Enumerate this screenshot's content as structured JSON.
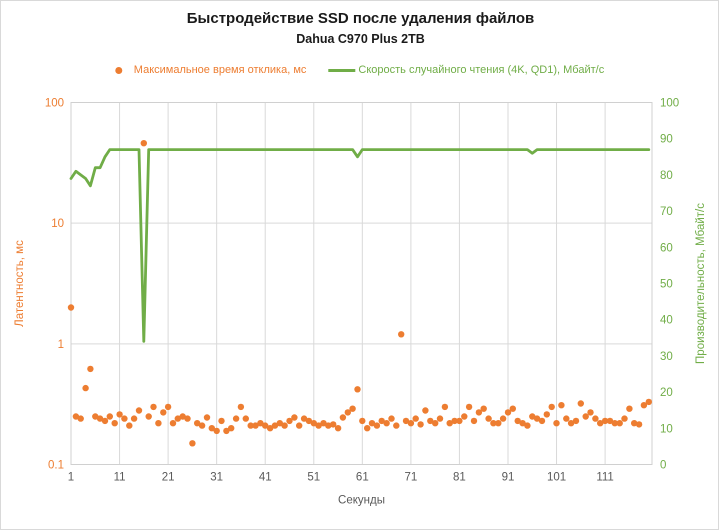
{
  "title": "Быстродействие SSD после удаления файлов",
  "subtitle": "Dahua C970 Plus 2TB",
  "legend": [
    {
      "label": "Максимальное время отклика, мс",
      "marker": "dot",
      "color": "#ED7D31"
    },
    {
      "label": "Скорость случайного чтения (4K, QD1), Мбайт/с",
      "marker": "line",
      "color": "#70AD47"
    }
  ],
  "colors": {
    "orange_series": "#ED7D31",
    "green_series": "#70AD47",
    "gridline": "#D9D9D9",
    "plot_border": "#D0D0D0",
    "x_tick_text": "#595959",
    "title_text": "#1A1A1A"
  },
  "chart_data": {
    "type": "combo",
    "title": "Быстродействие SSD после удаления файлов",
    "subtitle": "Dahua C970 Plus 2TB",
    "xlabel": "Секунды",
    "x_start": 1,
    "x_step": 1,
    "x_count": 120,
    "x_ticks": [
      1,
      11,
      21,
      31,
      41,
      51,
      61,
      71,
      81,
      91,
      101,
      111
    ],
    "grid": true,
    "legend_position": "top",
    "left_axis": {
      "title": "Латентность, мс",
      "scale": "log",
      "min": 0.1,
      "max": 100,
      "ticks": [
        100,
        10,
        1,
        0.1
      ],
      "color": "#ED7D31"
    },
    "right_axis": {
      "title": "Производительность, Мбайт/с",
      "scale": "linear",
      "min": 0,
      "max": 100,
      "tick_step": 10,
      "color": "#70AD47"
    },
    "series": [
      {
        "name": "Максимальное время отклика, мс",
        "type": "scatter",
        "axis": "left",
        "color": "#ED7D31",
        "values": [
          2.0,
          0.25,
          0.24,
          0.43,
          0.62,
          0.25,
          0.24,
          0.23,
          0.25,
          0.22,
          0.26,
          0.24,
          0.21,
          0.24,
          0.28,
          46,
          0.25,
          0.3,
          0.22,
          0.27,
          0.3,
          0.22,
          0.24,
          0.25,
          0.24,
          0.15,
          0.22,
          0.21,
          0.245,
          0.2,
          0.19,
          0.23,
          0.19,
          0.2,
          0.24,
          0.3,
          0.24,
          0.21,
          0.21,
          0.22,
          0.21,
          0.2,
          0.21,
          0.22,
          0.21,
          0.23,
          0.245,
          0.21,
          0.24,
          0.23,
          0.22,
          0.21,
          0.22,
          0.21,
          0.215,
          0.2,
          0.245,
          0.27,
          0.29,
          0.42,
          0.23,
          0.2,
          0.22,
          0.21,
          0.23,
          0.22,
          0.24,
          0.21,
          1.2,
          0.23,
          0.22,
          0.24,
          0.215,
          0.28,
          0.23,
          0.22,
          0.24,
          0.3,
          0.22,
          0.23,
          0.23,
          0.25,
          0.3,
          0.23,
          0.27,
          0.29,
          0.24,
          0.22,
          0.22,
          0.24,
          0.27,
          0.29,
          0.23,
          0.22,
          0.21,
          0.25,
          0.24,
          0.23,
          0.26,
          0.3,
          0.22,
          0.31,
          0.24,
          0.22,
          0.23,
          0.32,
          0.25,
          0.27,
          0.24,
          0.22,
          0.23,
          0.23,
          0.22,
          0.22,
          0.24,
          0.29,
          0.22,
          0.215,
          0.31,
          0.33
        ]
      },
      {
        "name": "Скорость случайного чтения (4K, QD1), Мбайт/с",
        "type": "line",
        "axis": "right",
        "color": "#70AD47",
        "values": [
          79,
          81,
          80,
          79,
          77,
          82,
          82,
          85,
          87,
          87,
          87,
          87,
          87,
          87,
          87,
          34,
          87,
          87,
          87,
          87,
          87,
          87,
          87,
          87,
          87,
          87,
          87,
          87,
          87,
          87,
          87,
          87,
          87,
          87,
          87,
          87,
          87,
          87,
          87,
          87,
          87,
          87,
          87,
          87,
          87,
          87,
          87,
          87,
          87,
          87,
          87,
          87,
          87,
          87,
          87,
          87,
          87,
          87,
          87,
          85,
          87,
          87,
          87,
          87,
          87,
          87,
          87,
          87,
          87,
          87,
          87,
          87,
          87,
          87,
          87,
          87,
          87,
          87,
          87,
          87,
          87,
          87,
          87,
          87,
          87,
          87,
          87,
          87,
          87,
          87,
          87,
          87,
          87,
          87,
          87,
          86,
          87,
          87,
          87,
          87,
          87,
          87,
          87,
          87,
          87,
          87,
          87,
          87,
          87,
          87,
          87,
          87,
          87,
          87,
          87,
          87,
          87,
          87,
          87,
          87
        ]
      }
    ]
  }
}
